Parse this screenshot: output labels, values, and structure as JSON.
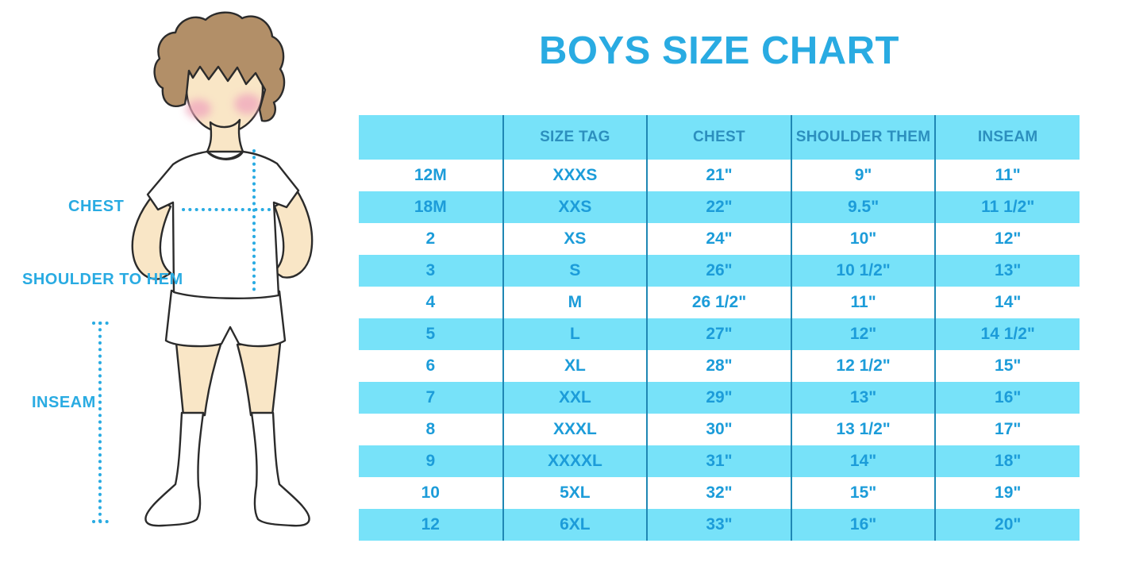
{
  "title": "BOYS SIZE CHART",
  "figure_labels": {
    "chest": "CHEST",
    "shoulder_to_hem": "SHOULDER TO HEM",
    "inseam": "INSEAM"
  },
  "colors": {
    "accent": "#29ABE2",
    "row_cyan": "#77E2F9",
    "divider": "#1F87B4",
    "header_text": "#2C8FBE",
    "cell_text": "#1C9CD9",
    "skin": "#F9E6C6",
    "hair": "#B28F68",
    "cheek": "#F0A9BE",
    "outline": "#2B2B2B"
  },
  "chart_data": {
    "type": "table",
    "title": "BOYS SIZE CHART",
    "columns": [
      "",
      "SIZE TAG",
      "CHEST",
      "SHOULDER THEM",
      "INSEAM"
    ],
    "rows": [
      [
        "12M",
        "XXXS",
        "21\"",
        "9\"",
        "11\""
      ],
      [
        "18M",
        "XXS",
        "22\"",
        "9.5\"",
        "11 1/2\""
      ],
      [
        "2",
        "XS",
        "24\"",
        "10\"",
        "12\""
      ],
      [
        "3",
        "S",
        "26\"",
        "10 1/2\"",
        "13\""
      ],
      [
        "4",
        "M",
        "26 1/2\"",
        "11\"",
        "14\""
      ],
      [
        "5",
        "L",
        "27\"",
        "12\"",
        "14 1/2\""
      ],
      [
        "6",
        "XL",
        "28\"",
        "12 1/2\"",
        "15\""
      ],
      [
        "7",
        "XXL",
        "29\"",
        "13\"",
        "16\""
      ],
      [
        "8",
        "XXXL",
        "30\"",
        "13 1/2\"",
        "17\""
      ],
      [
        "9",
        "XXXXL",
        "31\"",
        "14\"",
        "18\""
      ],
      [
        "10",
        "5XL",
        "32\"",
        "15\"",
        "19\""
      ],
      [
        "12",
        "6XL",
        "33\"",
        "16\"",
        "20\""
      ]
    ]
  }
}
